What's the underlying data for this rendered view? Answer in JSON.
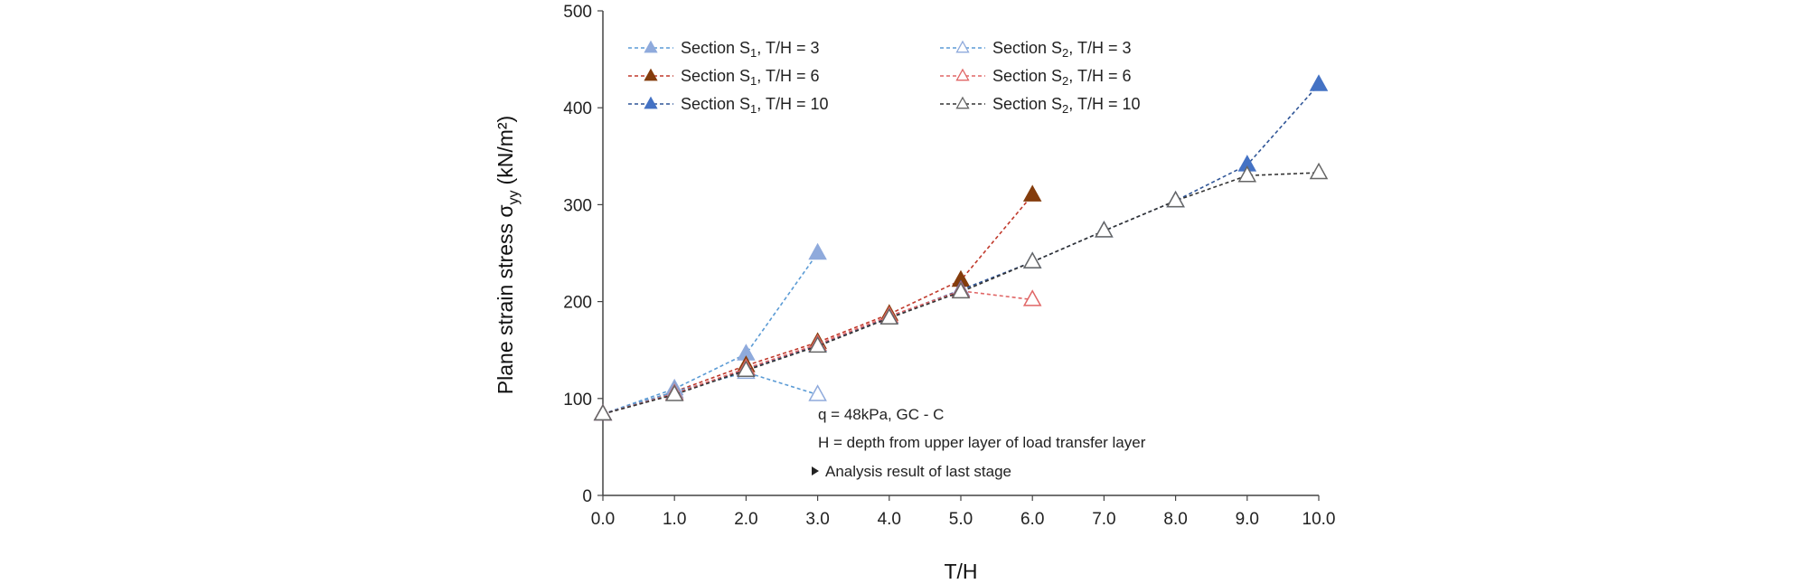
{
  "chart_data": {
    "type": "line",
    "xlabel": "T/H",
    "ylabel_main": "Plane strain stress σ",
    "ylabel_sub": "yy",
    "ylabel_unit": "(kN/m²)",
    "xlim": [
      0,
      10
    ],
    "ylim": [
      0,
      500
    ],
    "x_ticks": [
      "0.0",
      "1.0",
      "2.0",
      "3.0",
      "4.0",
      "5.0",
      "6.0",
      "7.0",
      "8.0",
      "9.0",
      "10.0"
    ],
    "y_ticks": [
      "0",
      "100",
      "200",
      "300",
      "400",
      "500"
    ],
    "grid": false,
    "legend_position": "top-left",
    "series": [
      {
        "name": "Section S1, T/H = 3",
        "legend_section": "Section  S",
        "legend_sub": "1",
        "legend_rest": ",  T/H = 3",
        "color": "#5B9BD5",
        "marker_fill": "#8FAADC",
        "filled": true,
        "x": [
          0,
          1,
          2,
          3
        ],
        "y": [
          84,
          110,
          146,
          250
        ]
      },
      {
        "name": "Section S1, T/H = 6",
        "legend_section": "Section  S",
        "legend_sub": "1",
        "legend_rest": ",  T/H = 6",
        "color": "#C0392B",
        "marker_fill": "#843C0C",
        "filled": true,
        "x": [
          0,
          1,
          2,
          3,
          4,
          5,
          6
        ],
        "y": [
          84,
          107,
          134,
          158,
          187,
          222,
          310
        ]
      },
      {
        "name": "Section S1, T/H = 10",
        "legend_section": "Section  S",
        "legend_sub": "1",
        "legend_rest": ",  T/H = 10",
        "color": "#2F5597",
        "marker_fill": "#4472C4",
        "filled": true,
        "x": [
          0,
          1,
          2,
          3,
          4,
          5,
          6,
          7,
          8,
          9,
          10
        ],
        "y": [
          84,
          105,
          130,
          155,
          184,
          212,
          241,
          273,
          304,
          341,
          424
        ]
      },
      {
        "name": "Section S2, T/H = 3",
        "legend_section": "Section  S",
        "legend_sub": "2",
        "legend_rest": ",  T/H = 3",
        "color": "#5B9BD5",
        "marker_fill": "#ffffff",
        "marker_stroke": "#8FAADC",
        "filled": false,
        "x": [
          0,
          1,
          2,
          3
        ],
        "y": [
          84,
          107,
          127,
          104
        ]
      },
      {
        "name": "Section S2, T/H = 6",
        "legend_section": "Section  S",
        "legend_sub": "2",
        "legend_rest": ",  T/H = 6",
        "color": "#E06666",
        "marker_fill": "#ffffff",
        "marker_stroke": "#E06666",
        "filled": false,
        "x": [
          0,
          1,
          2,
          3,
          4,
          5,
          6
        ],
        "y": [
          84,
          105,
          131,
          156,
          185,
          211,
          202
        ]
      },
      {
        "name": "Section S2, T/H = 10",
        "legend_section": "Section  S",
        "legend_sub": "2",
        "legend_rest": ",  T/H = 10",
        "color": "#333333",
        "marker_fill": "#ffffff",
        "marker_stroke": "#666666",
        "filled": false,
        "x": [
          0,
          1,
          2,
          3,
          4,
          5,
          6,
          7,
          8,
          9,
          10
        ],
        "y": [
          84,
          104,
          129,
          154,
          183,
          210,
          241,
          273,
          304,
          330,
          333
        ]
      }
    ],
    "annotations": {
      "line1": "q = 48kPa,  GC - C",
      "line2": "H = depth from upper layer of  load transfer layer",
      "line3": "Analysis result of  last stage"
    }
  }
}
